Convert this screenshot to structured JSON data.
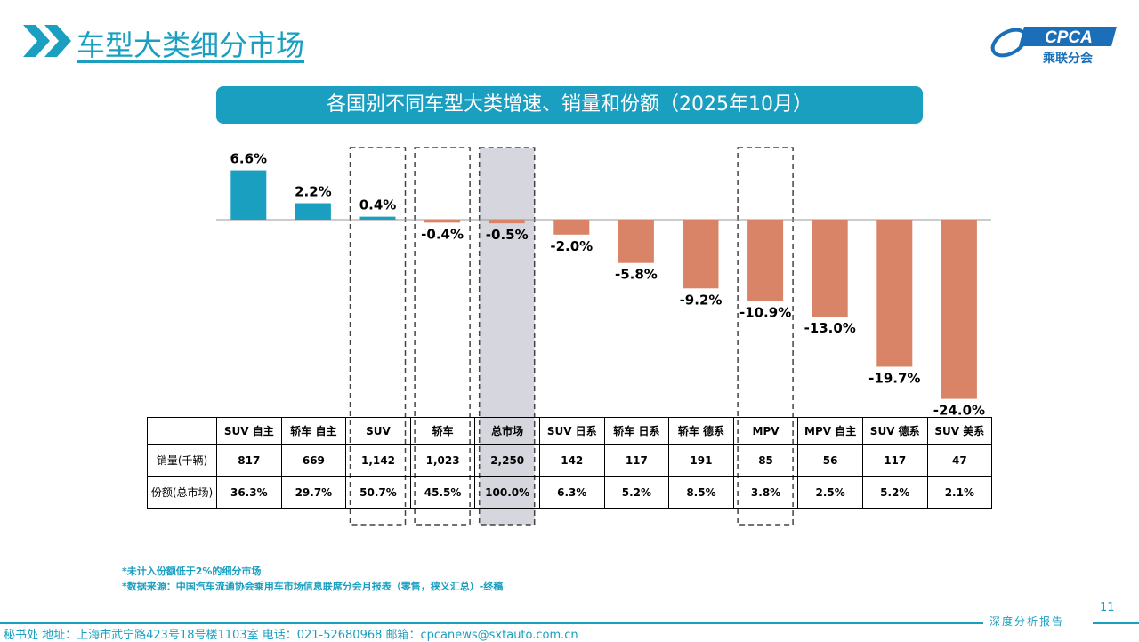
{
  "header": {
    "title": "车型大类细分市场",
    "logo_text": "CPCA",
    "logo_sub": "乘联分会"
  },
  "banner": "各国别不同车型大类增速、销量和份额（2025年10月）",
  "colors": {
    "accent": "#1a9fc0",
    "positive": "#1a9fc0",
    "negative": "#d98467",
    "highlight": "#d6d6de"
  },
  "chart_data": {
    "type": "bar",
    "categories": [
      "SUV 自主",
      "轿车 自主",
      "SUV",
      "轿车",
      "总市场",
      "SUV 日系",
      "轿车 日系",
      "轿车 德系",
      "MPV",
      "MPV 自主",
      "SUV 德系",
      "SUV 美系"
    ],
    "values": [
      6.6,
      2.2,
      0.4,
      -0.4,
      -0.5,
      -2.0,
      -5.8,
      -9.2,
      -10.9,
      -13.0,
      -19.7,
      -24.0
    ],
    "labels": [
      "6.6%",
      "2.2%",
      "0.4%",
      "-0.4%",
      "-0.5%",
      "-2.0%",
      "-5.8%",
      "-9.2%",
      "-10.9%",
      "-13.0%",
      "-19.7%",
      "-24.0%"
    ],
    "highlighted": [
      "SUV",
      "轿车",
      "总市场",
      "MPV"
    ],
    "unit": "%"
  },
  "table": {
    "rows": [
      {
        "label": "销量(千辆)",
        "values": [
          "817",
          "669",
          "1,142",
          "1,023",
          "2,250",
          "142",
          "117",
          "191",
          "85",
          "56",
          "117",
          "47"
        ]
      },
      {
        "label": "份额(总市场)",
        "values": [
          "36.3%",
          "29.7%",
          "50.7%",
          "45.5%",
          "100.0%",
          "6.3%",
          "5.2%",
          "8.5%",
          "3.8%",
          "2.5%",
          "5.2%",
          "2.1%"
        ]
      }
    ]
  },
  "notes": [
    "*未计入份额低于2%的细分市场",
    "*数据来源：中国汽车流通协会乘用车市场信息联席分会月报表（零售，狭义汇总）-终稿"
  ],
  "footer": {
    "page": "11",
    "tag": "深度分析报告",
    "address": "秘书处  地址：上海市武宁路423号18号楼1103室  电话：021-52680968  邮箱：cpcanews@sxtauto.com.cn"
  }
}
